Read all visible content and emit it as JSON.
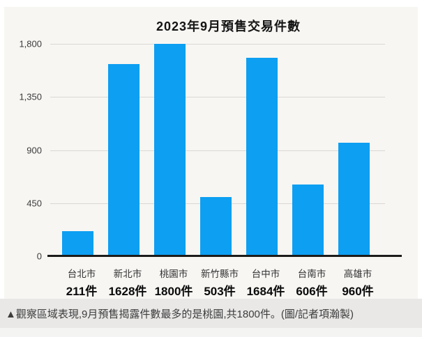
{
  "page": {
    "background": "#ffffff",
    "panel_background": "#f7f6f3"
  },
  "chart_data": {
    "type": "bar",
    "title": "2023年9月預售交易件數",
    "categories": [
      "台北市",
      "新北市",
      "桃園市",
      "新竹縣市",
      "台中市",
      "台南市",
      "高雄市"
    ],
    "values": [
      211,
      1628,
      1800,
      503,
      1684,
      606,
      960
    ],
    "value_labels": [
      "211件",
      "1628件",
      "1800件",
      "503件",
      "1684件",
      "606件",
      "960件"
    ],
    "xlabel": "",
    "ylabel": "",
    "ylim": [
      0,
      1800
    ],
    "y_ticks": [
      {
        "label": "1,800",
        "value": 1800
      },
      {
        "label": "1,350",
        "value": 1350
      },
      {
        "label": "900",
        "value": 900
      },
      {
        "label": "450",
        "value": 450
      },
      {
        "label": "0",
        "value": 0
      }
    ],
    "grid": true,
    "legend": false,
    "bar_color": "#0d9ff2",
    "axis_color": "#1b1b1b",
    "gridline_color": "#d9d8d5"
  },
  "caption": {
    "text": "▲觀察區域表現,9月預售揭露件數最多的是桃園,共1800件。(圖/記者項瀚製)"
  }
}
